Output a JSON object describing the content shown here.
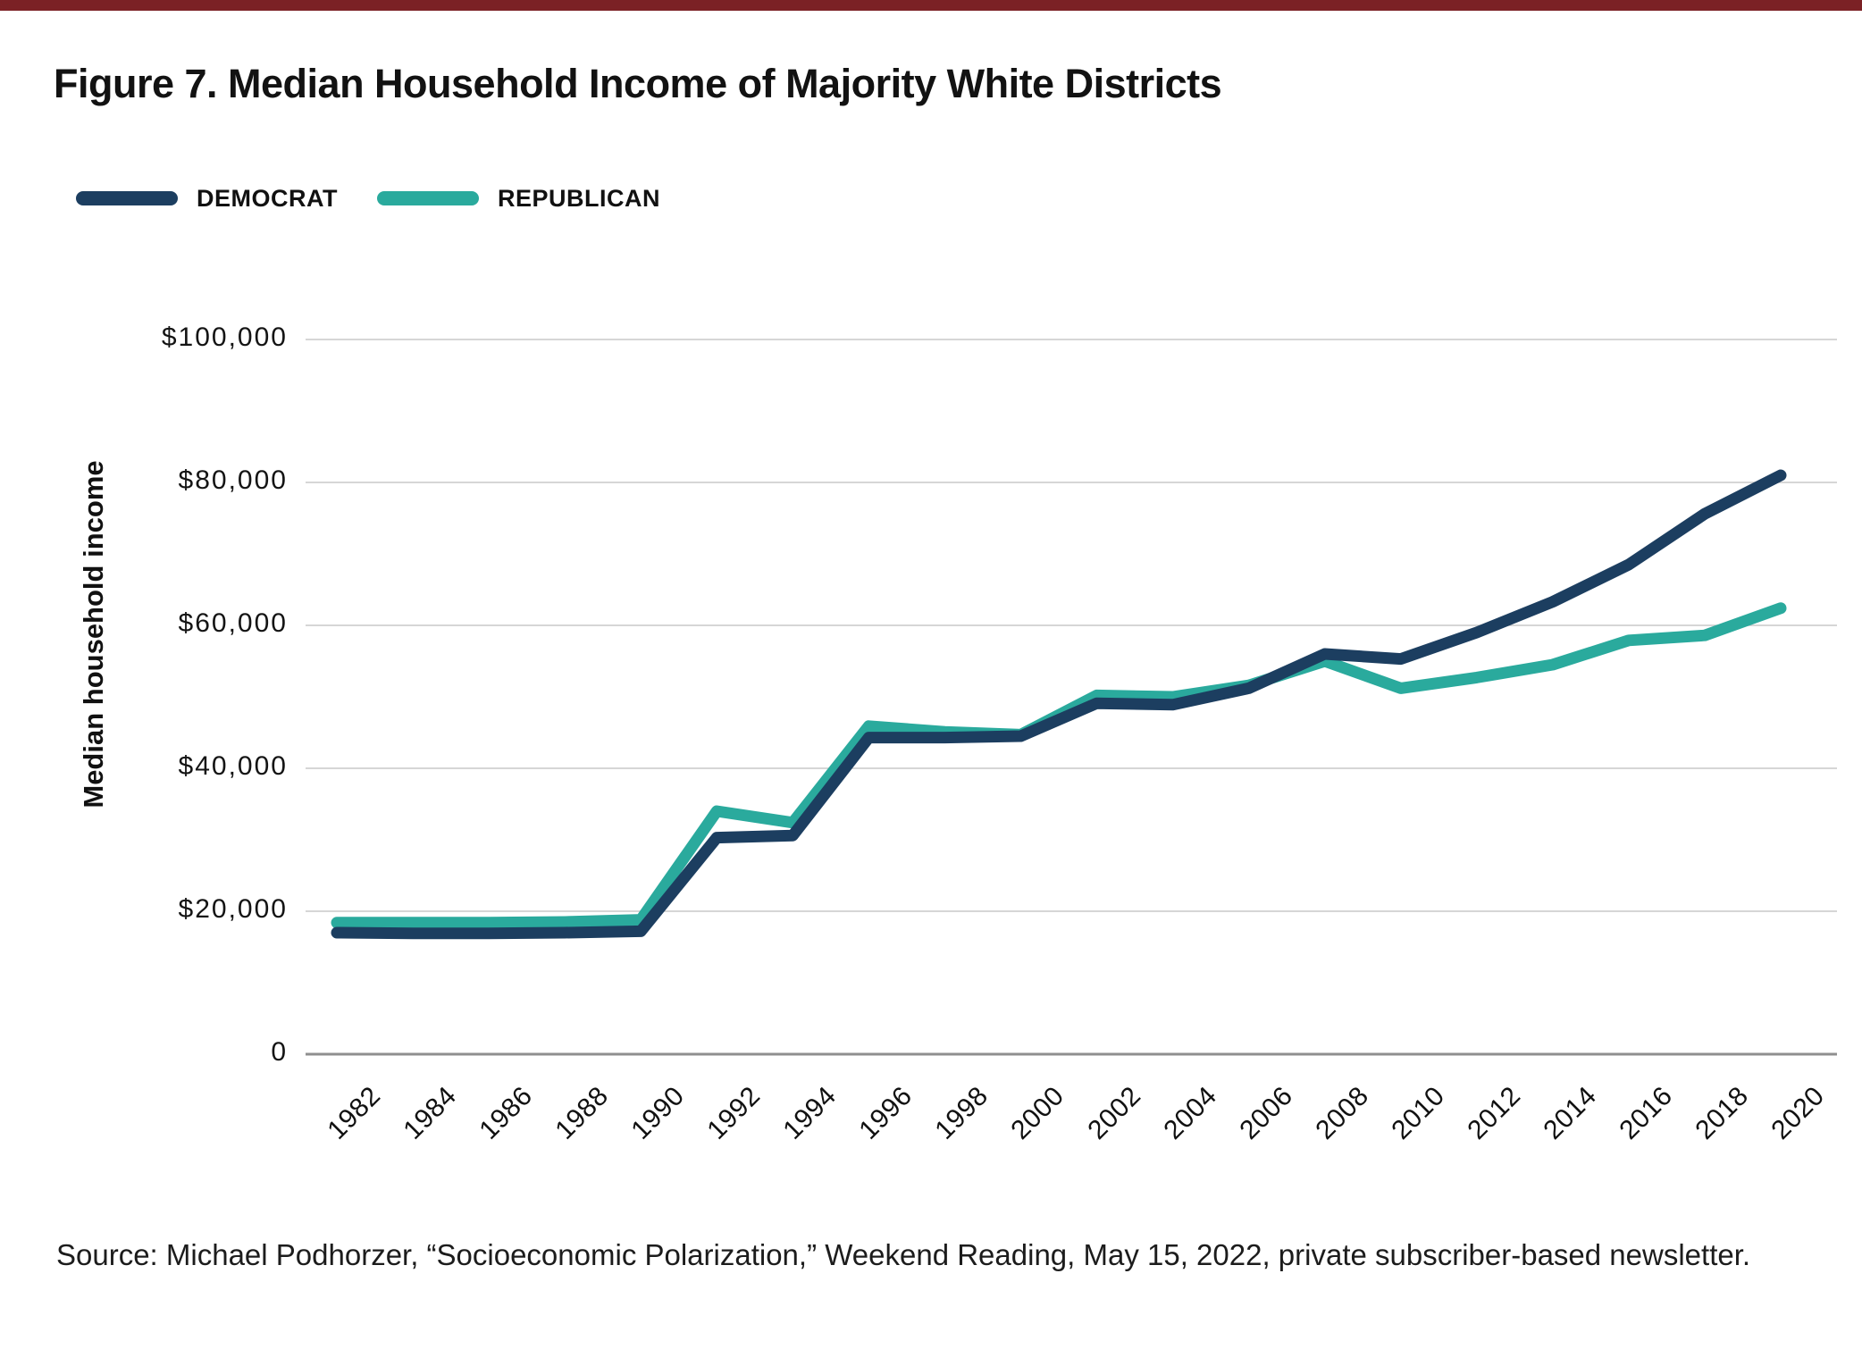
{
  "page": {
    "top_bar_color": "#7b2125",
    "title": "Figure 7. Median Household Income of Majority White Districts",
    "source": "Source: Michael Podhorzer, “Socioeconomic Polarization,” Weekend Reading, May 15, 2022, private subscriber-based newsletter."
  },
  "legend": {
    "items": [
      {
        "label": "DEMOCRAT",
        "color": "#1c3e60"
      },
      {
        "label": "REPUBLICAN",
        "color": "#2aaa9d"
      }
    ]
  },
  "chart_data": {
    "type": "line",
    "title": "Figure 7. Median Household Income of Majority White Districts",
    "xlabel": "",
    "ylabel": "Median household income",
    "x": [
      1982,
      1984,
      1986,
      1988,
      1990,
      1992,
      1994,
      1996,
      1998,
      2000,
      2002,
      2004,
      2006,
      2008,
      2010,
      2012,
      2014,
      2016,
      2018,
      2020
    ],
    "x_tick_labels": [
      "1982",
      "1984",
      "1986",
      "1988",
      "1990",
      "1992",
      "1994",
      "1996",
      "1998",
      "2000",
      "2002",
      "2004",
      "2006",
      "2008",
      "2010",
      "2012",
      "2014",
      "2016",
      "2018",
      "2020"
    ],
    "series": [
      {
        "name": "DEMOCRAT",
        "color": "#1c3e60",
        "values": [
          17000,
          16900,
          16900,
          17000,
          17200,
          30300,
          30600,
          44300,
          44300,
          44500,
          49100,
          48900,
          51200,
          56000,
          55300,
          59000,
          63300,
          68500,
          75600,
          81000
        ]
      },
      {
        "name": "REPUBLICAN",
        "color": "#2aaa9d",
        "values": [
          18400,
          18400,
          18400,
          18500,
          18800,
          34000,
          32400,
          45900,
          45100,
          44700,
          50200,
          50000,
          51600,
          55000,
          51200,
          52700,
          54500,
          57900,
          58600,
          62400
        ]
      }
    ],
    "y_ticks": [
      0,
      20000,
      40000,
      60000,
      80000,
      100000
    ],
    "y_tick_labels": [
      "0",
      "$20,000",
      "$40,000",
      "$60,000",
      "$80,000",
      "$100,000"
    ],
    "ylim": [
      0,
      100000
    ],
    "grid": "horizontal",
    "grid_color": "#c9c9c9",
    "axis_color": "#8f8f8f",
    "line_width": 13,
    "legend_position": "top-left"
  }
}
